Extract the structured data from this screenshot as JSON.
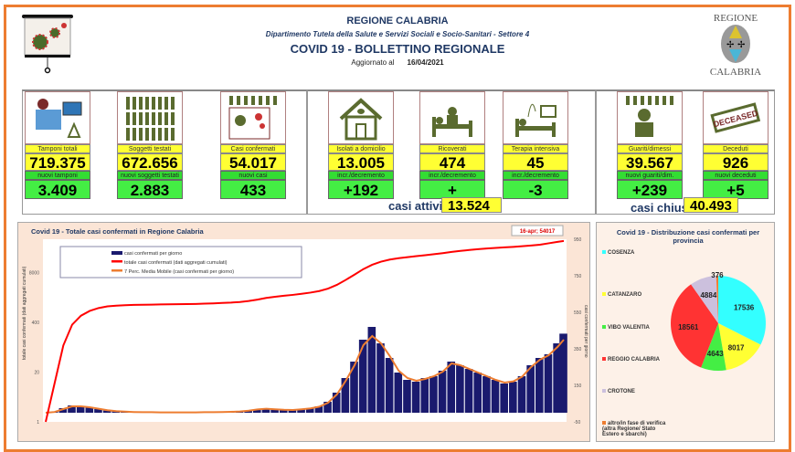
{
  "header": {
    "region": "REGIONE CALABRIA",
    "department": "Dipartimento Tutela della Salute e Servizi Sociali e Socio-Sanitari - Settore 4",
    "title": "COVID 19 - BOLLETTINO REGIONALE",
    "updated_label": "Aggiornato al",
    "updated_date": "16/04/2021",
    "logo_top": "REGIONE",
    "logo_bottom": "CALABRIA"
  },
  "cards": [
    {
      "icon": "lab-equipment-icon",
      "label": "Tamponi totali",
      "value": "719.375",
      "sub_label": "nuovi tamponi",
      "sub_value": "3.409"
    },
    {
      "icon": "people-grid-icon",
      "label": "Soggetti testati",
      "value": "672.656",
      "sub_label": "nuovi soggetti testati",
      "sub_value": "2.883"
    },
    {
      "icon": "infected-person-icon",
      "label": "Casi confermati",
      "value": "54.017",
      "sub_label": "nuovi casi",
      "sub_value": "433"
    },
    {
      "icon": "house-icon",
      "label": "Isolati a domicilio",
      "value": "13.005",
      "sub_label": "incr./decremento",
      "sub_value": "+192"
    },
    {
      "icon": "hospital-bed-icon",
      "label": "Ricoverati",
      "value": "474",
      "sub_label": "incr./decremento",
      "sub_value": "+"
    },
    {
      "icon": "intensive-care-icon",
      "label": "Terapia intensiva",
      "value": "45",
      "sub_label": "incr./decremento",
      "sub_value": "-3"
    },
    {
      "icon": "recovered-person-icon",
      "label": "Guariti/dimessi",
      "value": "39.567",
      "sub_label": "nuovi guariti/dim.",
      "sub_value": "+239"
    },
    {
      "icon": "deceased-stamp-icon",
      "label": "Deceduti",
      "value": "926",
      "sub_label": "nuovi deceduti",
      "sub_value": "+5"
    }
  ],
  "summary": {
    "active_label": "casi attivi",
    "active_value": "13.524",
    "closed_label": "casi chiusi",
    "closed_value": "40.493"
  },
  "stamp_text": "DECEASED",
  "chart_data": [
    {
      "type": "bar+line",
      "title": "Covid 19 - Totale casi confermati in Regione Calabria",
      "ylabel_left": "totale casi confermati (dati aggregati cumulati)",
      "ylabel_right": "casi confermati per giorno",
      "left_scale": "log",
      "left_ticks": [
        "1",
        "20",
        "400",
        "8000"
      ],
      "left_range": [
        1,
        60000
      ],
      "right_ticks": [
        "-50",
        "150",
        "350",
        "550",
        "750",
        "950"
      ],
      "right_range": [
        -50,
        950
      ],
      "annotation": "16-apr; 54017",
      "legend": [
        "casi confermati per giorno",
        "totale casi confermati (dati aggregati cumulati)",
        "7 Perc. Media Mobile (casi confermati per giorno)"
      ],
      "colors": {
        "daily": "#1a1a6e",
        "cumulative": "#ff0000",
        "moving_avg": "#ed7d31"
      },
      "x_start": "2020-03-01",
      "x_end": "2021-04-16",
      "x": [
        "2020-03-01",
        "2020-03-08",
        "2020-03-15",
        "2020-03-22",
        "2020-03-29",
        "2020-04-05",
        "2020-04-12",
        "2020-04-19",
        "2020-04-26",
        "2020-05-03",
        "2020-05-10",
        "2020-05-17",
        "2020-05-24",
        "2020-05-31",
        "2020-06-07",
        "2020-06-14",
        "2020-06-21",
        "2020-06-28",
        "2020-07-05",
        "2020-07-12",
        "2020-07-19",
        "2020-07-26",
        "2020-08-02",
        "2020-08-09",
        "2020-08-16",
        "2020-08-23",
        "2020-08-30",
        "2020-09-06",
        "2020-09-13",
        "2020-09-20",
        "2020-09-27",
        "2020-10-04",
        "2020-10-11",
        "2020-10-18",
        "2020-10-25",
        "2020-11-01",
        "2020-11-08",
        "2020-11-15",
        "2020-11-22",
        "2020-11-29",
        "2020-12-06",
        "2020-12-13",
        "2020-12-20",
        "2020-12-27",
        "2021-01-03",
        "2021-01-10",
        "2021-01-17",
        "2021-01-24",
        "2021-01-31",
        "2021-02-07",
        "2021-02-14",
        "2021-02-21",
        "2021-02-28",
        "2021-03-07",
        "2021-03-14",
        "2021-03-21",
        "2021-03-28",
        "2021-04-04",
        "2021-04-11",
        "2021-04-16"
      ],
      "daily": [
        0,
        5,
        25,
        40,
        35,
        30,
        20,
        12,
        8,
        5,
        4,
        3,
        3,
        2,
        2,
        2,
        2,
        2,
        3,
        3,
        4,
        5,
        8,
        12,
        20,
        25,
        18,
        15,
        15,
        20,
        25,
        35,
        60,
        110,
        190,
        280,
        400,
        470,
        380,
        300,
        220,
        180,
        170,
        190,
        200,
        230,
        280,
        260,
        240,
        220,
        200,
        180,
        160,
        170,
        200,
        260,
        300,
        320,
        380,
        433
      ],
      "moving_avg": [
        0,
        4,
        20,
        35,
        35,
        30,
        22,
        14,
        9,
        6,
        4,
        3,
        3,
        2,
        2,
        2,
        2,
        2,
        3,
        3,
        4,
        5,
        7,
        11,
        18,
        22,
        19,
        16,
        15,
        19,
        24,
        33,
        55,
        100,
        175,
        260,
        370,
        420,
        380,
        310,
        230,
        190,
        175,
        185,
        200,
        225,
        270,
        260,
        240,
        220,
        200,
        180,
        165,
        172,
        198,
        250,
        290,
        315,
        360,
        400
      ],
      "cumulative": [
        1,
        10,
        100,
        350,
        600,
        800,
        950,
        1050,
        1100,
        1130,
        1150,
        1160,
        1170,
        1180,
        1190,
        1200,
        1210,
        1220,
        1240,
        1260,
        1290,
        1320,
        1370,
        1450,
        1580,
        1750,
        1880,
        1990,
        2100,
        2240,
        2410,
        2650,
        3070,
        3840,
        5170,
        7130,
        9930,
        12870,
        15530,
        17630,
        19170,
        20430,
        21620,
        22950,
        24350,
        25960,
        27920,
        29740,
        31420,
        32960,
        34360,
        35620,
        36740,
        37930,
        39330,
        41150,
        43250,
        47000,
        51200,
        54017
      ]
    },
    {
      "type": "pie",
      "title": "Covid 19 - Distribuzione casi confermati per provincia",
      "slices": [
        {
          "label": "COSENZA",
          "value": 17536,
          "color": "#33ffff"
        },
        {
          "label": "CATANZARO",
          "value": 8017,
          "color": "#ffff33"
        },
        {
          "label": "VIBO VALENTIA",
          "value": 4643,
          "color": "#44ee44"
        },
        {
          "label": "REGGIO CALABRIA",
          "value": 18561,
          "color": "#ff3333"
        },
        {
          "label": "CROTONE",
          "value": 4884,
          "color": "#ccc0dd"
        },
        {
          "label": "altro/in fase di verifica (altra Regione/ Stato Estero e sbarchi)",
          "value": 376,
          "color": "#ed7d31"
        }
      ]
    }
  ]
}
